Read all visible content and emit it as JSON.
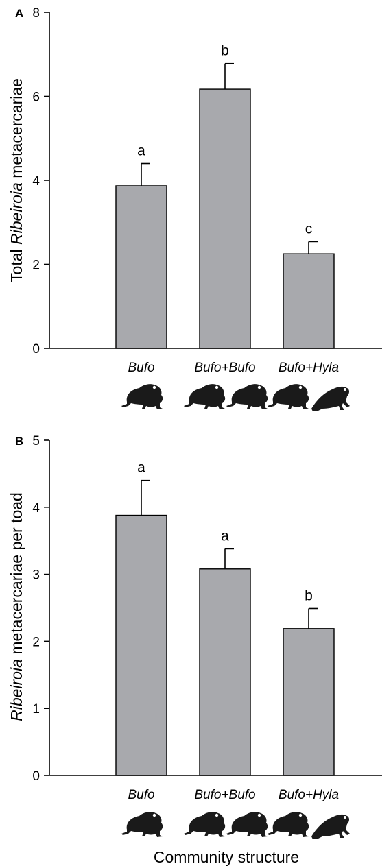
{
  "chart_data": [
    {
      "type": "bar",
      "panel": "A",
      "ylabel_parts": [
        "Total ",
        "Ribeiroia",
        " metacercariae"
      ],
      "xlabel": "",
      "ylim": [
        0,
        8
      ],
      "yticks": [
        0,
        2,
        4,
        6,
        8
      ],
      "categories": [
        "Bufo",
        "Bufo+Bufo",
        "Bufo+Hyla"
      ],
      "values": [
        3.87,
        6.17,
        2.25
      ],
      "errors": [
        0.53,
        0.61,
        0.29
      ],
      "significance": [
        "a",
        "b",
        "c"
      ],
      "bar_color": "#a8a9ad",
      "silhouettes": [
        [
          "toad"
        ],
        [
          "toad",
          "toad"
        ],
        [
          "toad",
          "treefrog"
        ]
      ]
    },
    {
      "type": "bar",
      "panel": "B",
      "ylabel_parts": [
        "",
        "Ribeiroia",
        " metacercariae per toad"
      ],
      "xlabel": "Community structure",
      "ylim": [
        0,
        5
      ],
      "yticks": [
        0,
        1,
        2,
        3,
        4,
        5
      ],
      "categories": [
        "Bufo",
        "Bufo+Bufo",
        "Bufo+Hyla"
      ],
      "values": [
        3.88,
        3.08,
        2.19
      ],
      "errors": [
        0.52,
        0.3,
        0.3
      ],
      "significance": [
        "a",
        "a",
        "b"
      ],
      "bar_color": "#a8a9ad",
      "silhouettes": [
        [
          "toad"
        ],
        [
          "toad",
          "toad"
        ],
        [
          "toad",
          "treefrog"
        ]
      ]
    }
  ]
}
